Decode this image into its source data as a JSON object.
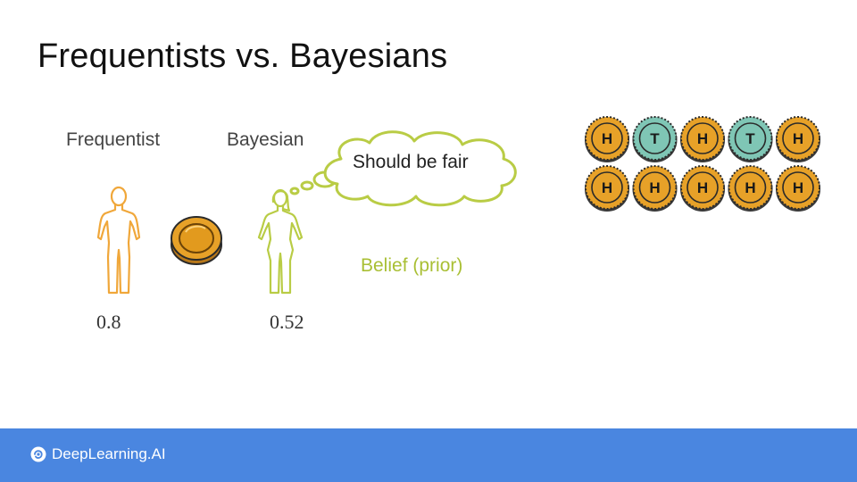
{
  "title": "Frequentists vs. Bayesians",
  "frequentist": {
    "label": "Frequentist",
    "estimate": "0.8"
  },
  "bayesian": {
    "label": "Bayesian",
    "estimate": "0.52",
    "thought": "Should be fair",
    "belief_label": "Belief (prior)"
  },
  "coins": {
    "rows": [
      [
        "H",
        "T",
        "H",
        "T",
        "H"
      ],
      [
        "H",
        "H",
        "H",
        "H",
        "H"
      ]
    ],
    "heads_color": "#e7a128",
    "tails_color": "#7fc6b5"
  },
  "footer": {
    "brand": "DeepLearning.AI",
    "color": "#4a86e0"
  },
  "colors": {
    "frequentist_figure": "#f0a73a",
    "bayesian_figure": "#b9cc45",
    "thought_cloud": "#b9cc45"
  }
}
